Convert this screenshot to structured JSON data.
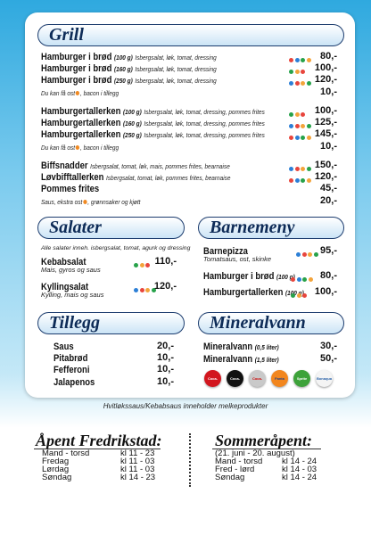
{
  "grill": {
    "title": "Grill",
    "items": [
      {
        "name": "Hamburger i brød",
        "size": "(100 g)",
        "desc": "Isbergsalat, løk, tomat, dressing",
        "price": "80,-"
      },
      {
        "name": "Hamburger i brød",
        "size": "(160 g)",
        "desc": "Isbergsalat, løk, tomat, dressing",
        "price": "100,-"
      },
      {
        "name": "Hamburger i brød",
        "size": "(250 g)",
        "desc": "Isbergsalat, løk, tomat, dressing",
        "price": "120,-"
      },
      {
        "note": "Du kan få ost",
        "note2": ", bacon i tillegg",
        "price": "10,-"
      },
      {
        "name": "Hamburgertallerken",
        "size": "(100 g)",
        "desc": "Isbergsalat, løk, tomat, dressing, pommes frites",
        "price": "100,-"
      },
      {
        "name": "Hamburgertallerken",
        "size": "(160 g)",
        "desc": "Isbergsalat, løk, tomat, dressing, pommes frites",
        "price": "125,-"
      },
      {
        "name": "Hamburgertallerken",
        "size": "(250 g)",
        "desc": "Isbergsalat, løk, tomat, dressing, pommes frites",
        "price": "145,-"
      },
      {
        "note": "Du kan få ost",
        "note2": ", bacon i tillegg",
        "price": "10,-"
      },
      {
        "name": "Biffsnadder",
        "desc": "Isbergsalat, tomat, løk, mais, pommes frites, bearnaise",
        "price": "150,-"
      },
      {
        "name": "Løvbifftallerken",
        "desc": "Isbergsalat, tomat, løk, pommes frites, bearnaise",
        "price": "120,-"
      },
      {
        "name": "Pommes frites",
        "price": "45,-"
      },
      {
        "note": "Saus, ekstra ost",
        "note2": ", grønnsaker og kjøtt",
        "price": "20,-"
      }
    ]
  },
  "salater": {
    "title": "Salater",
    "intro": "Alle salater inneh. isbergsalat, tomat, agurk og dressing",
    "items": [
      {
        "name": "Kebabsalat",
        "desc": "Mais, gyros og saus",
        "price": "110,-"
      },
      {
        "name": "Kyllingsalat",
        "desc": "Kylling, mais og saus",
        "price": "120,-"
      }
    ]
  },
  "barnemeny": {
    "title": "Barnemeny",
    "items": [
      {
        "name": "Barnepizza",
        "desc": "Tomatsaus, ost, skinke",
        "price": "95,-"
      },
      {
        "name": "Hamburger i brød",
        "size": "(100 g)",
        "price": "80,-"
      },
      {
        "name": "Hamburgertallerken",
        "size": "(100 g)",
        "price": "100,-"
      }
    ]
  },
  "tillegg": {
    "title": "Tillegg",
    "items": [
      {
        "name": "Saus",
        "price": "20,-"
      },
      {
        "name": "Pitabrød",
        "price": "10,-"
      },
      {
        "name": "Fefferoni",
        "price": "10,-"
      },
      {
        "name": "Jalapenos",
        "price": "10,-"
      }
    ]
  },
  "mineralvann": {
    "title": "Mineralvann",
    "items": [
      {
        "name": "Mineralvann",
        "size": "(0,5 liter)",
        "price": "30,-"
      },
      {
        "name": "Mineralvann",
        "size": "(1,5 liter)",
        "price": "50,-"
      }
    ],
    "brands": [
      "Coca-Cola",
      "Coca-Cola",
      "Coca-Cola",
      "Fanta",
      "Sprite",
      "Bonaqua"
    ]
  },
  "footnote": "Hvitløkssaus/Kebabsaus inneholder melkeprodukter",
  "hours": {
    "fredrikstad": {
      "title": "Åpent Fredrikstad:",
      "rows": [
        [
          "Mand - torsd",
          "kl 11 - 23"
        ],
        [
          "Fredag",
          "kl 11 - 03"
        ],
        [
          "Lørdag",
          "kl 11 - 03"
        ],
        [
          "Søndag",
          "kl 14 - 23"
        ]
      ]
    },
    "summer": {
      "title": "Sommeråpent:",
      "period": "(21. juni - 20. august)",
      "rows": [
        [
          "Mand - torsd",
          "kl 14 - 24"
        ],
        [
          "Fred - lørd",
          "kl 14 - 03"
        ],
        [
          "Søndag",
          "kl 14 - 24"
        ]
      ]
    }
  }
}
